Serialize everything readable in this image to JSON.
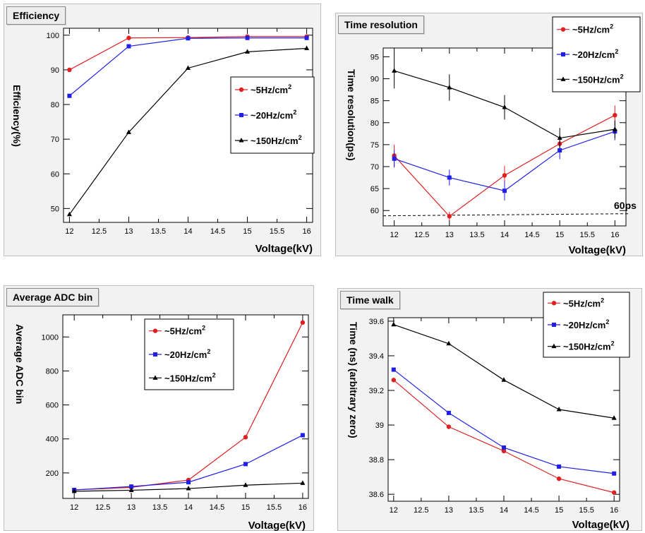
{
  "legend": {
    "s5": "~5Hz/cm",
    "s20": "~20Hz/cm",
    "s150": "~150Hz/cm",
    "sup": "2"
  },
  "colors": {
    "red": "#e02020",
    "blue": "#1f1fe8",
    "black": "#000000"
  },
  "chart_data": [
    {
      "type": "line",
      "title": "Efficiency",
      "xlabel": "Voltage(kV)",
      "ylabel": "Efficiency(%)",
      "x": [
        12,
        13,
        14,
        15,
        16
      ],
      "xlim": [
        11.9,
        16.1
      ],
      "ylim": [
        46,
        102
      ],
      "xticks": [
        "12",
        "12.5",
        "13",
        "13.5",
        "14",
        "14.5",
        "15",
        "15.5",
        "16"
      ],
      "yticks": [
        "50",
        "60",
        "70",
        "80",
        "90",
        "100"
      ],
      "series": [
        {
          "name": "~5Hz/cm2",
          "color": "red",
          "marker": "circle",
          "values": [
            90,
            99.2,
            99.3,
            99.6,
            99.6
          ]
        },
        {
          "name": "~20Hz/cm2",
          "color": "blue",
          "marker": "square",
          "values": [
            82.5,
            96.8,
            99.1,
            99.2,
            99.2
          ]
        },
        {
          "name": "~150Hz/cm2",
          "color": "black",
          "marker": "triangle",
          "values": [
            48.3,
            72,
            90.5,
            95.2,
            96.2
          ]
        }
      ],
      "grid": false,
      "legend_position": "middle-right"
    },
    {
      "type": "line",
      "title": "Time resolution",
      "xlabel": "Voltage(kV)",
      "ylabel": "Time resolution(ps)",
      "x": [
        12,
        13,
        14,
        15,
        16
      ],
      "xlim": [
        11.8,
        16.2
      ],
      "ylim": [
        56.5,
        97
      ],
      "xticks": [
        "12",
        "12.5",
        "13",
        "13.5",
        "14",
        "14.5",
        "15",
        "15.5",
        "16"
      ],
      "yticks": [
        "60",
        "65",
        "70",
        "75",
        "80",
        "85",
        "90",
        "95"
      ],
      "series": [
        {
          "name": "~5Hz/cm2",
          "color": "red",
          "marker": "circle",
          "values": [
            72.5,
            58.7,
            68,
            75.2,
            81.7
          ],
          "errors": [
            2.5,
            1,
            2.2,
            2,
            2.2
          ]
        },
        {
          "name": "~20Hz/cm2",
          "color": "blue",
          "marker": "square",
          "values": [
            71.8,
            67.5,
            64.5,
            73.7,
            78
          ],
          "errors": [
            2,
            1.8,
            2.2,
            2,
            2
          ]
        },
        {
          "name": "~150Hz/cm2",
          "color": "black",
          "marker": "triangle",
          "values": [
            91.8,
            88,
            83.5,
            76.5,
            78.5
          ],
          "errors": [
            4,
            3,
            2.8,
            2.3,
            2
          ]
        }
      ],
      "annotation": {
        "text": "60ps",
        "y": 58.8
      },
      "grid": false,
      "legend_position": "top-right"
    },
    {
      "type": "line",
      "title": "Average ADC bin",
      "xlabel": "Voltage(kV)",
      "ylabel": "Average ADC bin",
      "x": [
        12,
        13,
        14,
        15,
        16
      ],
      "xlim": [
        11.8,
        16.1
      ],
      "ylim": [
        50,
        1130
      ],
      "xticks": [
        "12",
        "12.5",
        "13",
        "13.5",
        "14",
        "14.5",
        "15",
        "15.5",
        "16"
      ],
      "yticks": [
        "200",
        "400",
        "600",
        "800",
        "1000"
      ],
      "series": [
        {
          "name": "~5Hz/cm2",
          "color": "red",
          "marker": "circle",
          "values": [
            100,
            115,
            158,
            410,
            1085
          ]
        },
        {
          "name": "~20Hz/cm2",
          "color": "blue",
          "marker": "square",
          "values": [
            100,
            120,
            145,
            252,
            422
          ]
        },
        {
          "name": "~150Hz/cm2",
          "color": "black",
          "marker": "triangle",
          "values": [
            92,
            98,
            108,
            128,
            140
          ]
        }
      ],
      "grid": false,
      "legend_position": "top-center"
    },
    {
      "type": "line",
      "title": "Time walk",
      "xlabel": "Voltage(kV)",
      "ylabel": "Time  (ns)  (arbitrary zero)",
      "x": [
        12,
        13,
        14,
        15,
        16
      ],
      "xlim": [
        11.9,
        16.1
      ],
      "ylim": [
        38.56,
        39.62
      ],
      "xticks": [
        "12",
        "12.5",
        "13",
        "13.5",
        "14",
        "14.5",
        "15",
        "15.5",
        "16"
      ],
      "yticks": [
        "38.6",
        "38.8",
        "39",
        "39.2",
        "39.4",
        "39.6"
      ],
      "series": [
        {
          "name": "~5Hz/cm2",
          "color": "red",
          "marker": "circle",
          "values": [
            39.26,
            38.99,
            38.85,
            38.69,
            38.61
          ]
        },
        {
          "name": "~20Hz/cm2",
          "color": "blue",
          "marker": "square",
          "values": [
            39.32,
            39.07,
            38.87,
            38.76,
            38.72
          ]
        },
        {
          "name": "~150Hz/cm2",
          "color": "black",
          "marker": "triangle",
          "values": [
            39.58,
            39.47,
            39.26,
            39.09,
            39.04
          ]
        }
      ],
      "grid": false,
      "legend_position": "top-right"
    }
  ]
}
